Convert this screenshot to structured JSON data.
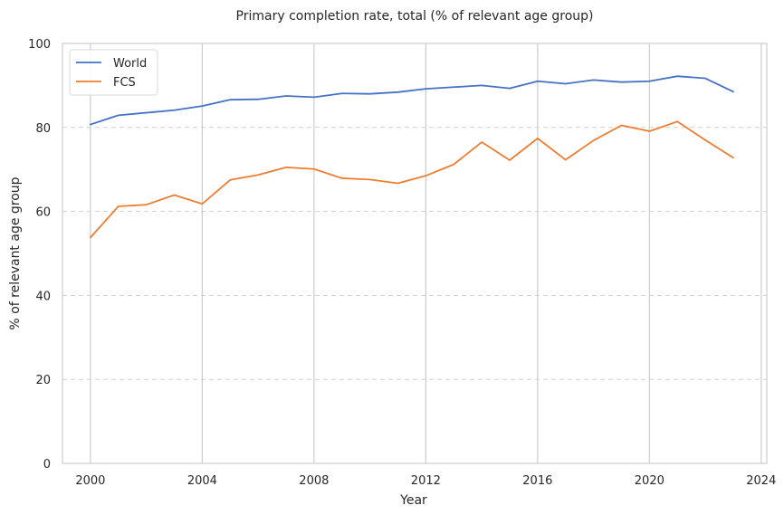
{
  "chart_data": {
    "type": "line",
    "title": "Primary completion rate, total (% of relevant age group)",
    "xlabel": "Year",
    "ylabel": "% of relevant age group",
    "xlim": [
      1999,
      2024.2
    ],
    "ylim": [
      0,
      100
    ],
    "xticks": [
      2000,
      2004,
      2008,
      2012,
      2016,
      2020,
      2024
    ],
    "yticks": [
      0,
      20,
      40,
      60,
      80,
      100
    ],
    "x": [
      2000,
      2001,
      2002,
      2003,
      2004,
      2005,
      2006,
      2007,
      2008,
      2009,
      2010,
      2011,
      2012,
      2013,
      2014,
      2015,
      2016,
      2017,
      2018,
      2019,
      2020,
      2021,
      2022,
      2023
    ],
    "series": [
      {
        "name": "World",
        "color": "#4472c4",
        "values": [
          80.7,
          82.9,
          83.5,
          84.1,
          85.1,
          86.6,
          86.7,
          87.5,
          87.2,
          88.1,
          88.0,
          88.4,
          89.2,
          89.6,
          90.0,
          89.3,
          91.0,
          90.4,
          91.3,
          90.8,
          91.0,
          92.2,
          91.7,
          88.5
        ]
      },
      {
        "name": "FCS",
        "color": "#ed7d31",
        "values": [
          53.8,
          61.2,
          61.6,
          63.9,
          61.8,
          67.5,
          68.7,
          70.5,
          70.1,
          67.9,
          67.6,
          66.7,
          68.5,
          71.2,
          76.5,
          72.2,
          77.4,
          72.3,
          76.9,
          80.5,
          79.1,
          81.4,
          77.0,
          72.8
        ]
      }
    ],
    "grid": {
      "x": "solid",
      "y": "dashed"
    },
    "legend": "top-left"
  }
}
